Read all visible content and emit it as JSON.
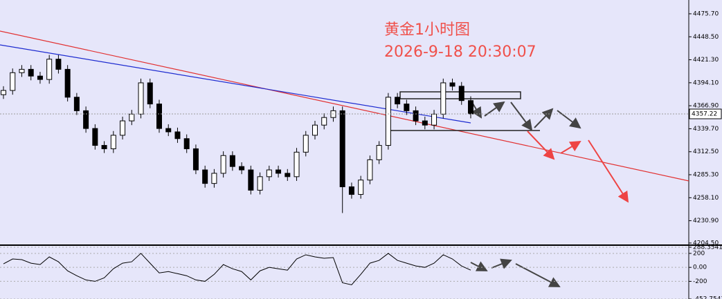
{
  "chart_data": [
    {
      "type": "candlestick",
      "title": "黄金1小时图",
      "subtitle": "2026-9-18 20:30:07",
      "up_color": "#ffffff",
      "down_color": "#000000",
      "open": [
        4380,
        4385,
        4406,
        4410,
        4402,
        4398,
        4422,
        4410,
        4377,
        4361,
        4340,
        4320,
        4316,
        4332,
        4349,
        4357,
        4394,
        4369,
        4340,
        4336,
        4328,
        4316,
        4291,
        4275,
        4287,
        4308,
        4295,
        4291,
        4267,
        4283,
        4291,
        4287,
        4283,
        4312,
        4332,
        4344,
        4353,
        4361,
        4271,
        4262,
        4279,
        4303,
        4320,
        4377,
        4369,
        4361,
        4349,
        4344,
        4357,
        4394,
        4390,
        4373
      ],
      "high": [
        4390,
        4411,
        4415,
        4415,
        4407,
        4427,
        4427,
        4415,
        4382,
        4366,
        4345,
        4325,
        4337,
        4354,
        4362,
        4399,
        4399,
        4374,
        4345,
        4341,
        4333,
        4321,
        4296,
        4292,
        4313,
        4313,
        4300,
        4296,
        4288,
        4296,
        4296,
        4292,
        4317,
        4337,
        4349,
        4358,
        4366,
        4366,
        4276,
        4284,
        4308,
        4325,
        4382,
        4382,
        4374,
        4366,
        4354,
        4362,
        4399,
        4399,
        4395,
        4378
      ],
      "low": [
        4375,
        4380,
        4401,
        4397,
        4393,
        4393,
        4405,
        4372,
        4356,
        4335,
        4315,
        4311,
        4311,
        4327,
        4344,
        4352,
        4364,
        4335,
        4331,
        4323,
        4311,
        4286,
        4270,
        4270,
        4282,
        4290,
        4286,
        4262,
        4262,
        4278,
        4282,
        4278,
        4278,
        4307,
        4327,
        4339,
        4348,
        4240,
        4257,
        4257,
        4274,
        4298,
        4315,
        4364,
        4356,
        4344,
        4339,
        4339,
        4352,
        4385,
        4368,
        4352
      ],
      "close": [
        4385,
        4406,
        4410,
        4402,
        4398,
        4422,
        4410,
        4377,
        4361,
        4340,
        4320,
        4316,
        4332,
        4349,
        4357,
        4394,
        4369,
        4340,
        4336,
        4328,
        4316,
        4291,
        4275,
        4287,
        4308,
        4295,
        4291,
        4267,
        4283,
        4291,
        4287,
        4283,
        4312,
        4332,
        4344,
        4353,
        4361,
        4271,
        4262,
        4279,
        4303,
        4320,
        4377,
        4369,
        4361,
        4349,
        4344,
        4357,
        4394,
        4390,
        4373,
        4357.22
      ],
      "ylim": [
        4202,
        4492
      ],
      "yticks": [
        {
          "value": 4475.7,
          "label": "4475.70"
        },
        {
          "value": 4448.5,
          "label": "4448.50"
        },
        {
          "value": 4421.3,
          "label": "4421.30"
        },
        {
          "value": 4394.1,
          "label": "4394.10"
        },
        {
          "value": 4366.9,
          "label": "4366.90"
        },
        {
          "value": 4339.7,
          "label": "4339.70"
        },
        {
          "value": 4312.5,
          "label": "4312.50"
        },
        {
          "value": 4285.3,
          "label": "4285.30"
        },
        {
          "value": 4258.1,
          "label": "4258.10"
        },
        {
          "value": 4230.9,
          "label": "4230.90"
        },
        {
          "value": 4204.5,
          "label": "4204.50"
        }
      ]
    },
    {
      "type": "line",
      "color": "#000000",
      "values": [
        50,
        120,
        110,
        60,
        40,
        150,
        80,
        -50,
        -120,
        -180,
        -200,
        -150,
        -20,
        60,
        80,
        200,
        60,
        -80,
        -60,
        -90,
        -120,
        -180,
        -200,
        -100,
        40,
        -20,
        -60,
        -180,
        -50,
        0,
        -20,
        -40,
        120,
        180,
        150,
        130,
        140,
        -220,
        -250,
        -100,
        60,
        100,
        200,
        100,
        60,
        20,
        0,
        60,
        180,
        120,
        20,
        -40
      ],
      "ylim": [
        -452.7542,
        288.3541
      ],
      "yticks": [
        288.3541,
        200,
        {
          "value": 0,
          "label": "0.00"
        },
        -200,
        -452.7542
      ]
    }
  ]
}
